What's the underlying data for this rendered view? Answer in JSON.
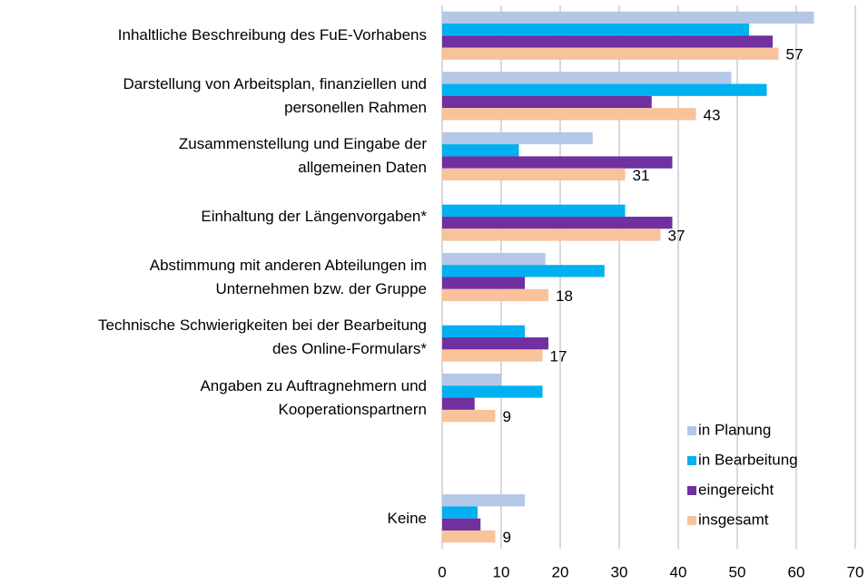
{
  "chart_data": {
    "type": "barh",
    "categories": [
      "Inhaltliche Beschreibung des FuE-Vorhabens",
      "Darstellung von Arbeitsplan, finanziellen und\npersonellen Rahmen",
      "Zusammenstellung und Eingabe der\nallgemeinen Daten",
      "Einhaltung der Längenvorgaben*",
      "Abstimmung mit anderen Abteilungen im\nUnternehmen bzw. der Gruppe",
      "Technische Schwierigkeiten bei der Bearbeitung\ndes Online-Formulars*",
      "Angaben zu Auftragnehmern und\nKooperationspartnern",
      null,
      "Keine"
    ],
    "series": [
      {
        "name": "in Planung",
        "color": "#b4c7e7",
        "values": [
          63,
          49,
          25.5,
          null,
          17.5,
          null,
          10,
          null,
          14
        ]
      },
      {
        "name": "in Bearbeitung",
        "color": "#00b0f0",
        "values": [
          52,
          55,
          13,
          31,
          27.5,
          14,
          17,
          null,
          6
        ]
      },
      {
        "name": "eingereicht",
        "color": "#7030a0",
        "values": [
          56,
          35.5,
          39,
          39,
          14,
          18,
          5.5,
          null,
          6.5
        ]
      },
      {
        "name": "insgesamt",
        "color": "#f8c29a",
        "values": [
          57,
          43,
          31,
          37,
          18,
          17,
          9,
          null,
          9
        ],
        "data_labels": true
      }
    ],
    "xlim": [
      0,
      70
    ],
    "xticks": [
      0,
      10,
      20,
      30,
      40,
      50,
      60,
      70
    ],
    "grid": true,
    "legend": "lower right"
  }
}
